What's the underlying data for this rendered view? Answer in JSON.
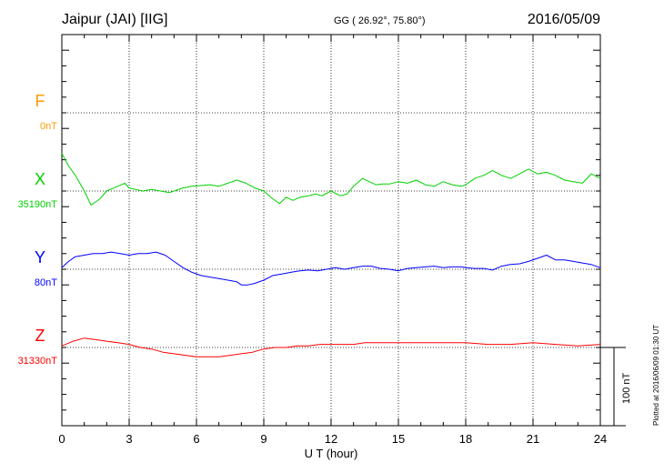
{
  "header": {
    "station": "Jaipur (JAI)  [IIG]",
    "coords": "GG ( 26.92°,  75.80°)",
    "date": "2016/05/09"
  },
  "footer": {
    "plotted": "Plotted at 2016/06/09 01:30 UT"
  },
  "chart_data": {
    "type": "line",
    "xlabel": "U T (hour)",
    "xlim": [
      0,
      24
    ],
    "xticks": [
      "0",
      "3",
      "6",
      "9",
      "12",
      "15",
      "18",
      "21",
      "24"
    ],
    "grid": true,
    "scale_bar": {
      "label": "100 nT",
      "value_nT": 100
    },
    "colors": {
      "F": "#ff9900",
      "X": "#00d000",
      "Y": "#0000ff",
      "Z": "#ff0000"
    },
    "series": [
      {
        "name": "F",
        "baseline_label": "0nT",
        "x": [],
        "y": []
      },
      {
        "name": "X",
        "baseline_label": "35190nT",
        "x": [
          0,
          0.3,
          0.6,
          1.0,
          1.3,
          1.7,
          2.0,
          2.4,
          2.8,
          3.0,
          3.3,
          3.6,
          4.0,
          4.4,
          4.8,
          5.0,
          5.4,
          5.8,
          6.2,
          6.6,
          7.0,
          7.4,
          7.8,
          8.2,
          8.6,
          9.0,
          9.4,
          9.7,
          10.0,
          10.3,
          10.6,
          11.0,
          11.3,
          11.6,
          12.0,
          12.4,
          12.7,
          13.0,
          13.4,
          13.7,
          14.0,
          14.3,
          14.6,
          15.0,
          15.4,
          15.8,
          16.2,
          16.6,
          17.0,
          17.4,
          17.8,
          18.0,
          18.4,
          18.8,
          19.2,
          19.6,
          20.0,
          20.4,
          20.8,
          21.2,
          21.6,
          22.0,
          22.4,
          22.8,
          23.2,
          23.6,
          24.0
        ],
        "y": [
          48,
          32,
          20,
          0,
          -18,
          -10,
          0,
          5,
          10,
          4,
          2,
          0,
          2,
          0,
          -2,
          0,
          4,
          6,
          7,
          8,
          6,
          10,
          14,
          10,
          4,
          0,
          -10,
          -16,
          -8,
          -12,
          -8,
          -6,
          -4,
          -6,
          0,
          -6,
          -4,
          6,
          16,
          12,
          8,
          9,
          9,
          12,
          10,
          14,
          8,
          6,
          12,
          8,
          6,
          8,
          16,
          20,
          26,
          20,
          16,
          22,
          28,
          22,
          24,
          20,
          14,
          12,
          10,
          22,
          16
        ]
      },
      {
        "name": "Y",
        "baseline_label": "80nT",
        "x": [
          0,
          0.3,
          0.6,
          1.0,
          1.4,
          1.8,
          2.2,
          2.6,
          3.0,
          3.4,
          3.8,
          4.2,
          4.6,
          5.0,
          5.4,
          5.8,
          6.2,
          6.6,
          7.0,
          7.4,
          7.8,
          8.0,
          8.3,
          8.6,
          9.0,
          9.4,
          9.8,
          10.2,
          10.6,
          11.0,
          11.4,
          11.8,
          12.2,
          12.6,
          13.0,
          13.4,
          13.8,
          14.2,
          14.6,
          15.0,
          15.4,
          15.8,
          16.2,
          16.6,
          17.0,
          17.4,
          17.8,
          18.0,
          18.4,
          18.8,
          19.2,
          19.6,
          20.0,
          20.4,
          20.8,
          21.2,
          21.6,
          22.0,
          22.4,
          22.8,
          23.2,
          23.6,
          24.0
        ],
        "y": [
          2,
          10,
          16,
          18,
          20,
          20,
          22,
          20,
          18,
          20,
          20,
          22,
          18,
          10,
          2,
          -4,
          -8,
          -10,
          -12,
          -14,
          -16,
          -20,
          -20,
          -18,
          -14,
          -8,
          -6,
          -4,
          -2,
          -1,
          -2,
          0,
          2,
          0,
          2,
          4,
          4,
          1,
          0,
          -2,
          1,
          2,
          3,
          4,
          2,
          3,
          3,
          2,
          1,
          1,
          -1,
          4,
          6,
          7,
          10,
          14,
          18,
          12,
          12,
          10,
          8,
          6,
          2
        ]
      },
      {
        "name": "Z",
        "baseline_label": "31330nT",
        "x": [
          0,
          0.5,
          1.0,
          1.5,
          2.0,
          2.5,
          3.0,
          3.5,
          4.0,
          4.5,
          5.0,
          5.5,
          6.0,
          6.5,
          7.0,
          7.5,
          8.0,
          8.5,
          9.0,
          9.5,
          10.0,
          10.5,
          11.0,
          11.5,
          12.0,
          12.5,
          13.0,
          13.5,
          14.0,
          15.0,
          16.0,
          17.0,
          18.0,
          19.0,
          20.0,
          21.0,
          22.0,
          23.0,
          24.0
        ],
        "y": [
          2,
          8,
          12,
          10,
          8,
          6,
          4,
          0,
          -2,
          -6,
          -8,
          -10,
          -12,
          -12,
          -12,
          -10,
          -8,
          -6,
          -2,
          0,
          0,
          2,
          2,
          4,
          4,
          4,
          4,
          6,
          6,
          6,
          6,
          6,
          6,
          4,
          4,
          6,
          4,
          2,
          4
        ]
      }
    ]
  }
}
